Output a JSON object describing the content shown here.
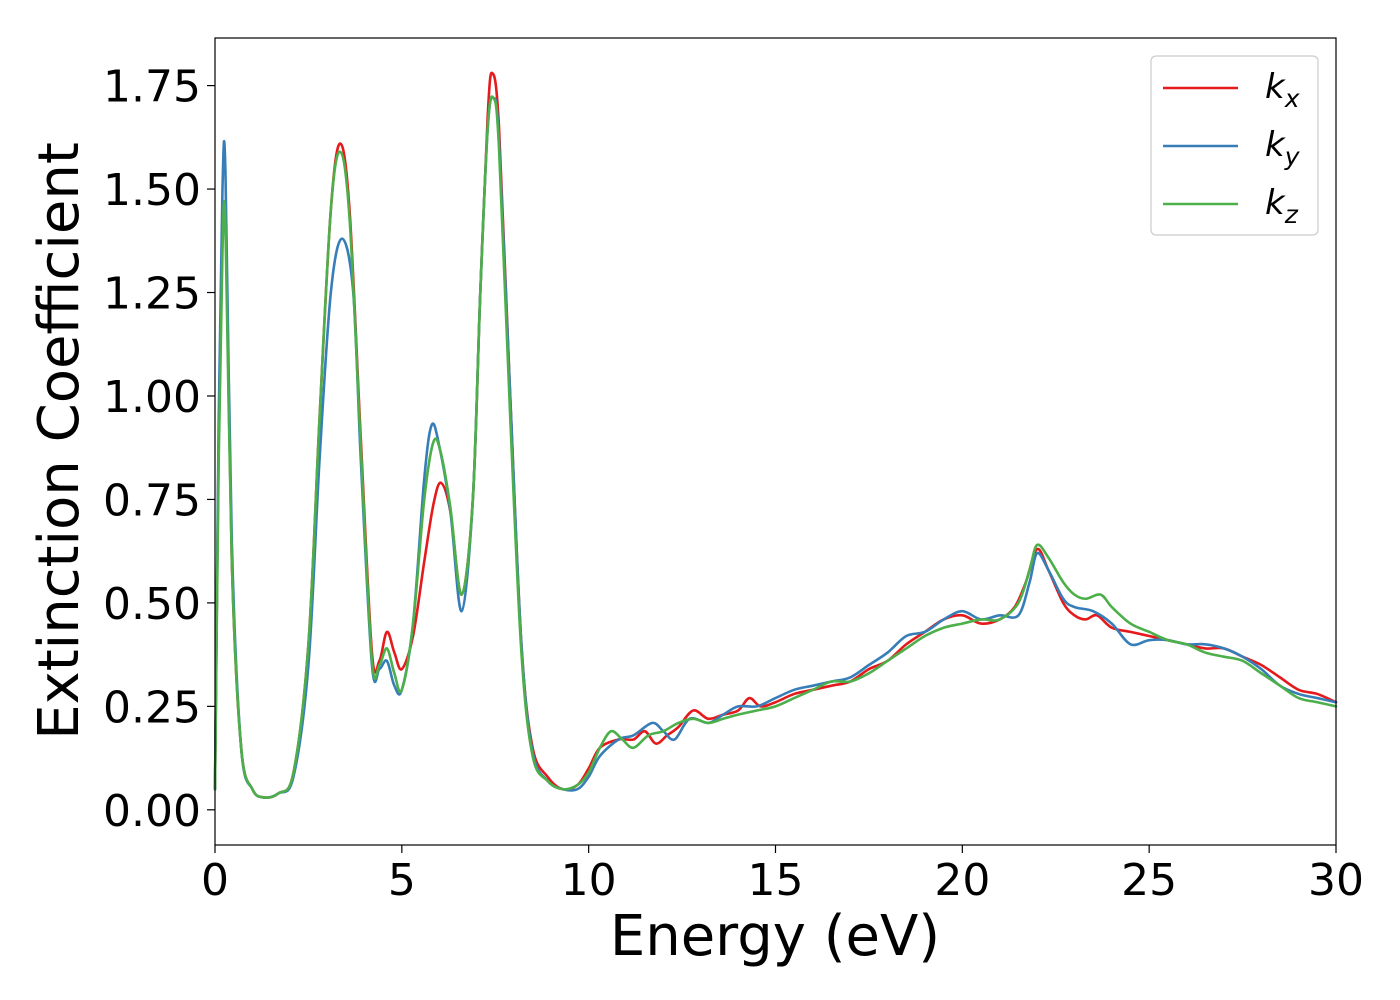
{
  "chart_data": {
    "type": "line",
    "xlabel": "Energy (eV)",
    "ylabel": "Extinction Coefficient",
    "xlim": [
      0,
      30
    ],
    "ylim": [
      -0.085,
      1.865
    ],
    "xticks": [
      "0",
      "5",
      "10",
      "15",
      "20",
      "25",
      "30"
    ],
    "yticks": [
      "0.00",
      "0.25",
      "0.50",
      "0.75",
      "1.00",
      "1.25",
      "1.50",
      "1.75"
    ],
    "grid": false,
    "legend_position": "top-right",
    "series": [
      {
        "name": "k",
        "subscript": "x",
        "color": "#e41a1c",
        "points": [
          [
            0,
            0.05
          ],
          [
            0.1,
            0.9
          ],
          [
            0.2,
            1.4
          ],
          [
            0.3,
            1.38
          ],
          [
            0.45,
            0.6
          ],
          [
            0.7,
            0.15
          ],
          [
            1.0,
            0.05
          ],
          [
            1.3,
            0.03
          ],
          [
            1.7,
            0.04
          ],
          [
            2.1,
            0.09
          ],
          [
            2.5,
            0.4
          ],
          [
            2.8,
            0.95
          ],
          [
            3.1,
            1.45
          ],
          [
            3.35,
            1.61
          ],
          [
            3.6,
            1.45
          ],
          [
            3.9,
            0.9
          ],
          [
            4.2,
            0.38
          ],
          [
            4.4,
            0.36
          ],
          [
            4.6,
            0.43
          ],
          [
            4.8,
            0.38
          ],
          [
            5.0,
            0.34
          ],
          [
            5.3,
            0.42
          ],
          [
            5.6,
            0.6
          ],
          [
            5.85,
            0.74
          ],
          [
            6.05,
            0.79
          ],
          [
            6.3,
            0.72
          ],
          [
            6.6,
            0.52
          ],
          [
            6.9,
            0.75
          ],
          [
            7.1,
            1.25
          ],
          [
            7.3,
            1.68
          ],
          [
            7.42,
            1.78
          ],
          [
            7.6,
            1.65
          ],
          [
            7.9,
            1.0
          ],
          [
            8.2,
            0.4
          ],
          [
            8.5,
            0.15
          ],
          [
            8.9,
            0.08
          ],
          [
            9.3,
            0.05
          ],
          [
            9.7,
            0.06
          ],
          [
            10.0,
            0.1
          ],
          [
            10.3,
            0.15
          ],
          [
            10.8,
            0.17
          ],
          [
            11.2,
            0.17
          ],
          [
            11.5,
            0.19
          ],
          [
            11.8,
            0.16
          ],
          [
            12.1,
            0.18
          ],
          [
            12.4,
            0.2
          ],
          [
            12.8,
            0.24
          ],
          [
            13.2,
            0.22
          ],
          [
            13.6,
            0.23
          ],
          [
            14.0,
            0.24
          ],
          [
            14.3,
            0.27
          ],
          [
            14.6,
            0.25
          ],
          [
            15.0,
            0.26
          ],
          [
            15.5,
            0.28
          ],
          [
            16.0,
            0.29
          ],
          [
            16.5,
            0.3
          ],
          [
            17.0,
            0.31
          ],
          [
            17.5,
            0.34
          ],
          [
            18.0,
            0.36
          ],
          [
            18.5,
            0.4
          ],
          [
            19.0,
            0.43
          ],
          [
            19.5,
            0.46
          ],
          [
            20.0,
            0.47
          ],
          [
            20.5,
            0.45
          ],
          [
            21.0,
            0.46
          ],
          [
            21.4,
            0.49
          ],
          [
            21.7,
            0.55
          ],
          [
            22.0,
            0.63
          ],
          [
            22.3,
            0.58
          ],
          [
            22.7,
            0.5
          ],
          [
            23.0,
            0.47
          ],
          [
            23.3,
            0.46
          ],
          [
            23.6,
            0.47
          ],
          [
            24.0,
            0.44
          ],
          [
            24.5,
            0.43
          ],
          [
            25.0,
            0.42
          ],
          [
            25.5,
            0.41
          ],
          [
            26.0,
            0.4
          ],
          [
            26.5,
            0.39
          ],
          [
            27.0,
            0.39
          ],
          [
            27.5,
            0.37
          ],
          [
            28.0,
            0.35
          ],
          [
            28.5,
            0.32
          ],
          [
            29.0,
            0.29
          ],
          [
            29.5,
            0.28
          ],
          [
            30.0,
            0.26
          ]
        ]
      },
      {
        "name": "k",
        "subscript": "y",
        "color": "#377eb8",
        "points": [
          [
            0,
            0.05
          ],
          [
            0.1,
            0.95
          ],
          [
            0.2,
            1.5
          ],
          [
            0.28,
            1.54
          ],
          [
            0.45,
            0.65
          ],
          [
            0.7,
            0.15
          ],
          [
            1.0,
            0.05
          ],
          [
            1.3,
            0.03
          ],
          [
            1.7,
            0.04
          ],
          [
            2.1,
            0.08
          ],
          [
            2.5,
            0.35
          ],
          [
            2.8,
            0.85
          ],
          [
            3.1,
            1.25
          ],
          [
            3.4,
            1.38
          ],
          [
            3.7,
            1.25
          ],
          [
            3.9,
            0.85
          ],
          [
            4.2,
            0.35
          ],
          [
            4.4,
            0.34
          ],
          [
            4.6,
            0.36
          ],
          [
            4.8,
            0.3
          ],
          [
            5.0,
            0.29
          ],
          [
            5.3,
            0.45
          ],
          [
            5.6,
            0.8
          ],
          [
            5.8,
            0.93
          ],
          [
            6.0,
            0.88
          ],
          [
            6.3,
            0.72
          ],
          [
            6.6,
            0.48
          ],
          [
            6.9,
            0.75
          ],
          [
            7.1,
            1.25
          ],
          [
            7.3,
            1.65
          ],
          [
            7.45,
            1.72
          ],
          [
            7.6,
            1.62
          ],
          [
            7.9,
            1.0
          ],
          [
            8.2,
            0.4
          ],
          [
            8.5,
            0.14
          ],
          [
            8.9,
            0.07
          ],
          [
            9.3,
            0.05
          ],
          [
            9.7,
            0.05
          ],
          [
            10.0,
            0.08
          ],
          [
            10.3,
            0.13
          ],
          [
            10.8,
            0.17
          ],
          [
            11.2,
            0.18
          ],
          [
            11.7,
            0.21
          ],
          [
            12.0,
            0.19
          ],
          [
            12.3,
            0.17
          ],
          [
            12.7,
            0.22
          ],
          [
            13.2,
            0.21
          ],
          [
            13.6,
            0.23
          ],
          [
            14.0,
            0.25
          ],
          [
            14.5,
            0.25
          ],
          [
            15.0,
            0.27
          ],
          [
            15.5,
            0.29
          ],
          [
            16.0,
            0.3
          ],
          [
            16.5,
            0.31
          ],
          [
            17.0,
            0.32
          ],
          [
            17.5,
            0.35
          ],
          [
            18.0,
            0.38
          ],
          [
            18.5,
            0.42
          ],
          [
            19.0,
            0.43
          ],
          [
            19.5,
            0.46
          ],
          [
            20.0,
            0.48
          ],
          [
            20.5,
            0.46
          ],
          [
            21.0,
            0.47
          ],
          [
            21.5,
            0.47
          ],
          [
            21.8,
            0.55
          ],
          [
            22.0,
            0.62
          ],
          [
            22.3,
            0.58
          ],
          [
            22.7,
            0.51
          ],
          [
            23.0,
            0.49
          ],
          [
            23.5,
            0.48
          ],
          [
            24.0,
            0.45
          ],
          [
            24.5,
            0.4
          ],
          [
            25.0,
            0.41
          ],
          [
            25.5,
            0.41
          ],
          [
            26.0,
            0.4
          ],
          [
            26.5,
            0.4
          ],
          [
            27.0,
            0.39
          ],
          [
            27.5,
            0.37
          ],
          [
            28.0,
            0.34
          ],
          [
            28.5,
            0.3
          ],
          [
            29.0,
            0.28
          ],
          [
            29.5,
            0.27
          ],
          [
            30.0,
            0.26
          ]
        ]
      },
      {
        "name": "k",
        "subscript": "z",
        "color": "#4daf4a",
        "points": [
          [
            0,
            0.05
          ],
          [
            0.1,
            0.85
          ],
          [
            0.2,
            1.35
          ],
          [
            0.28,
            1.41
          ],
          [
            0.45,
            0.6
          ],
          [
            0.7,
            0.15
          ],
          [
            1.0,
            0.05
          ],
          [
            1.3,
            0.03
          ],
          [
            1.7,
            0.04
          ],
          [
            2.1,
            0.09
          ],
          [
            2.5,
            0.4
          ],
          [
            2.8,
            0.95
          ],
          [
            3.1,
            1.45
          ],
          [
            3.35,
            1.59
          ],
          [
            3.6,
            1.43
          ],
          [
            3.9,
            0.88
          ],
          [
            4.2,
            0.36
          ],
          [
            4.4,
            0.35
          ],
          [
            4.6,
            0.39
          ],
          [
            4.8,
            0.33
          ],
          [
            5.0,
            0.29
          ],
          [
            5.3,
            0.45
          ],
          [
            5.6,
            0.75
          ],
          [
            5.85,
            0.89
          ],
          [
            6.05,
            0.86
          ],
          [
            6.3,
            0.73
          ],
          [
            6.6,
            0.52
          ],
          [
            6.9,
            0.75
          ],
          [
            7.1,
            1.25
          ],
          [
            7.3,
            1.65
          ],
          [
            7.45,
            1.72
          ],
          [
            7.6,
            1.6
          ],
          [
            7.9,
            0.95
          ],
          [
            8.2,
            0.38
          ],
          [
            8.5,
            0.13
          ],
          [
            8.9,
            0.07
          ],
          [
            9.3,
            0.05
          ],
          [
            9.7,
            0.06
          ],
          [
            10.0,
            0.09
          ],
          [
            10.3,
            0.15
          ],
          [
            10.6,
            0.19
          ],
          [
            10.9,
            0.17
          ],
          [
            11.2,
            0.15
          ],
          [
            11.6,
            0.18
          ],
          [
            12.0,
            0.19
          ],
          [
            12.4,
            0.21
          ],
          [
            12.8,
            0.22
          ],
          [
            13.2,
            0.21
          ],
          [
            13.6,
            0.22
          ],
          [
            14.0,
            0.23
          ],
          [
            14.5,
            0.24
          ],
          [
            15.0,
            0.25
          ],
          [
            15.5,
            0.27
          ],
          [
            16.0,
            0.29
          ],
          [
            16.5,
            0.31
          ],
          [
            17.0,
            0.31
          ],
          [
            17.5,
            0.33
          ],
          [
            18.0,
            0.36
          ],
          [
            18.5,
            0.39
          ],
          [
            19.0,
            0.42
          ],
          [
            19.5,
            0.44
          ],
          [
            20.0,
            0.45
          ],
          [
            20.5,
            0.46
          ],
          [
            21.0,
            0.46
          ],
          [
            21.5,
            0.5
          ],
          [
            21.8,
            0.58
          ],
          [
            22.0,
            0.64
          ],
          [
            22.3,
            0.61
          ],
          [
            22.7,
            0.55
          ],
          [
            23.0,
            0.52
          ],
          [
            23.3,
            0.51
          ],
          [
            23.7,
            0.52
          ],
          [
            24.0,
            0.49
          ],
          [
            24.5,
            0.45
          ],
          [
            25.0,
            0.43
          ],
          [
            25.5,
            0.41
          ],
          [
            26.0,
            0.4
          ],
          [
            26.5,
            0.38
          ],
          [
            27.0,
            0.37
          ],
          [
            27.5,
            0.36
          ],
          [
            28.0,
            0.33
          ],
          [
            28.5,
            0.3
          ],
          [
            29.0,
            0.27
          ],
          [
            29.5,
            0.26
          ],
          [
            30.0,
            0.25
          ]
        ]
      }
    ]
  }
}
